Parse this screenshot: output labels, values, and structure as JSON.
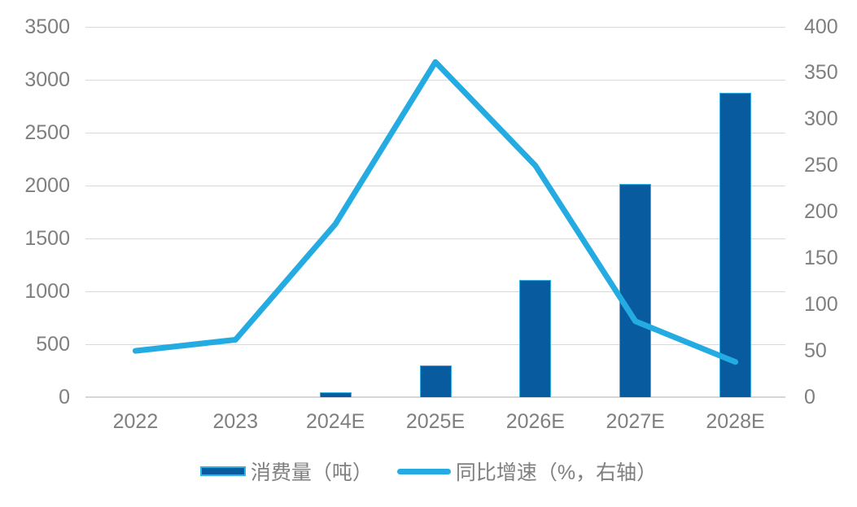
{
  "chart_data": {
    "type": "bar",
    "combo": "bar+line",
    "title": "",
    "categories": [
      "2022",
      "2023",
      "2024E",
      "2025E",
      "2026E",
      "2027E",
      "2028E"
    ],
    "series": [
      {
        "name": "消费量（吨）",
        "type": "bar",
        "axis": "left",
        "values": [
          0,
          0,
          48,
          300,
          1105,
          2015,
          2880
        ]
      },
      {
        "name": "同比增速（%，右轴）",
        "type": "line",
        "axis": "right",
        "values": [
          50,
          62,
          187,
          362,
          250,
          82,
          38
        ]
      }
    ],
    "left_axis": {
      "min": 0,
      "max": 3500,
      "step": 500,
      "ticks": [
        0,
        500,
        1000,
        1500,
        2000,
        2500,
        3000,
        3500
      ]
    },
    "right_axis": {
      "min": 0,
      "max": 400,
      "step": 50,
      "ticks": [
        0,
        50,
        100,
        150,
        200,
        250,
        300,
        350,
        400
      ]
    },
    "grid": true,
    "legend_position": "bottom"
  },
  "colors": {
    "bar_fill": "#075b9e",
    "bar_border": "#33b3e5",
    "line": "#24abe2",
    "grid": "#d9d9d9",
    "text": "#7f7f7f",
    "background": "#ffffff"
  }
}
